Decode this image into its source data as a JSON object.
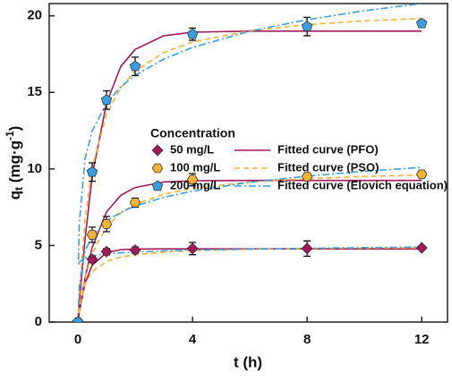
{
  "chart_data": {
    "type": "scatter",
    "x_label": "t (h)",
    "y_label": {
      "main": "q",
      "sub": "t",
      "unit": " (mg·g",
      "sup": "-1",
      "close": ")"
    },
    "legend_title": "Concentration",
    "xlim": [
      -1,
      12.9
    ],
    "ylim": [
      0,
      20.8
    ],
    "xticks": [
      0,
      4,
      8,
      12
    ],
    "yticks": [
      0,
      5,
      10,
      15,
      20
    ],
    "x": [
      0,
      0.5,
      1,
      2,
      4,
      8,
      12
    ],
    "series": [
      {
        "name": "50 mg/L",
        "color": "#a3195b",
        "marker": "diamond",
        "values": [
          0,
          4.1,
          4.6,
          4.7,
          4.8,
          4.8,
          4.85
        ],
        "errors": [
          0,
          0.2,
          0.2,
          0.2,
          0.4,
          0.5,
          0.1
        ]
      },
      {
        "name": "100 mg/L",
        "color": "#f4b233",
        "marker": "hexagon",
        "values": [
          0,
          5.7,
          6.4,
          7.8,
          9.3,
          9.5,
          9.65
        ],
        "errors": [
          0,
          0.5,
          0.5,
          0.3,
          0.4,
          0.2,
          0.2
        ]
      },
      {
        "name": "200 mg/L",
        "color": "#3a9fe0",
        "marker": "pentagon",
        "values": [
          0,
          9.8,
          14.5,
          16.7,
          18.8,
          19.3,
          19.5
        ],
        "errors": [
          0,
          0.6,
          0.6,
          0.6,
          0.4,
          0.6,
          0.2
        ]
      }
    ],
    "fits": [
      {
        "name": "Fitted curve (PFO)",
        "color": "#a3195b",
        "dash": "none",
        "curves": [
          {
            "x": [
              0,
              0.05,
              0.25,
              0.5,
              1,
              1.5,
              2,
              3,
              4,
              6,
              8,
              10,
              12
            ],
            "values": [
              0,
              0.66,
              2.52,
              3.71,
              4.54,
              4.73,
              4.77,
              4.78,
              4.78,
              4.78,
              4.78,
              4.78,
              4.78
            ]
          },
          {
            "x": [
              0,
              0.05,
              0.25,
              0.5,
              1,
              1.5,
              2,
              3,
              4,
              6,
              8,
              10,
              12
            ],
            "values": [
              0,
              0.67,
              2.89,
              4.88,
              7.19,
              8.28,
              8.79,
              9.15,
              9.23,
              9.25,
              9.25,
              9.25,
              9.25
            ]
          },
          {
            "x": [
              0,
              0.05,
              0.25,
              0.5,
              1,
              1.5,
              2,
              3,
              4,
              6,
              8,
              10,
              12
            ],
            "values": [
              0,
              1.28,
              5.39,
              9.56,
              14.3,
              16.7,
              17.8,
              18.7,
              18.93,
              19,
              19,
              19,
              19
            ]
          }
        ]
      },
      {
        "name": "Fitted curve (PSO)",
        "color": "#f4b233",
        "dash": "6 4",
        "curves": [
          {
            "x": [
              0,
              0.05,
              0.25,
              0.5,
              1,
              1.5,
              2,
              3,
              4,
              6,
              8,
              10,
              12
            ],
            "values": [
              0,
              0.83,
              2.48,
              3.3,
              3.96,
              4.24,
              4.4,
              4.57,
              4.66,
              4.75,
              4.8,
              4.83,
              4.85
            ]
          },
          {
            "x": [
              0,
              0.05,
              0.25,
              0.5,
              1,
              1.5,
              2,
              3,
              4,
              6,
              8,
              10,
              12
            ],
            "values": [
              0,
              0.74,
              2.89,
              4.49,
              6.21,
              7.13,
              7.69,
              8.35,
              8.73,
              9.15,
              9.36,
              9.51,
              9.6
            ]
          },
          {
            "x": [
              0,
              0.05,
              0.25,
              0.5,
              1,
              1.5,
              2,
              3,
              4,
              6,
              8,
              10,
              12
            ],
            "values": [
              0,
              1.8,
              6.67,
              10.09,
              13.56,
              15.32,
              16.39,
              17.61,
              18.29,
              19.03,
              19.42,
              19.67,
              19.83
            ]
          }
        ]
      },
      {
        "name": "Fitted curve (Elovich equation)",
        "color": "#3a9fe0",
        "dash": "8 3 2 3",
        "curves": [
          {
            "x": [
              0.02,
              0.05,
              0.25,
              0.5,
              1,
              1.5,
              2,
              3,
              4,
              6,
              8,
              10,
              12
            ],
            "values": [
              3.75,
              3.91,
              4.2,
              4.33,
              4.45,
              4.52,
              4.57,
              4.65,
              4.7,
              4.77,
              4.82,
              4.86,
              4.9
            ]
          },
          {
            "x": [
              0.02,
              0.05,
              0.25,
              0.5,
              1,
              1.5,
              2,
              3,
              4,
              6,
              8,
              10,
              12
            ],
            "values": [
              1.08,
              2.38,
              4.65,
              5.62,
              6.6,
              7.17,
              7.58,
              8.15,
              8.55,
              9.13,
              9.53,
              9.85,
              10.1
            ]
          },
          {
            "x": [
              0.02,
              0.05,
              0.25,
              0.5,
              1,
              1.5,
              2,
              3,
              4,
              6,
              8,
              10,
              12
            ],
            "values": [
              4.05,
              6.45,
              10.67,
              12.48,
              14.3,
              15.36,
              16.12,
              17.18,
              17.93,
              19,
              19.75,
              20.33,
              20.8
            ]
          }
        ]
      }
    ]
  }
}
